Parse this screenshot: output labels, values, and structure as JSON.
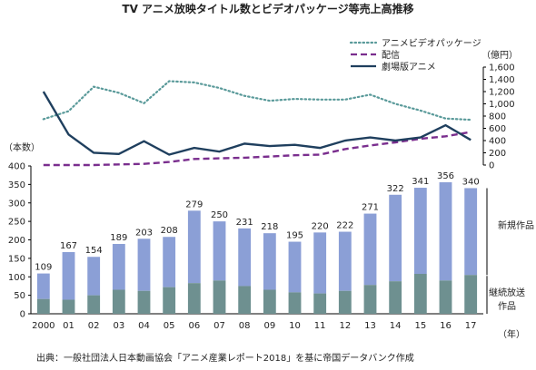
{
  "chart_data": {
    "type": "bar",
    "title": "TV アニメ放映タイトル数とビデオパッケージ等売上高推移",
    "categories": [
      "2000",
      "01",
      "02",
      "03",
      "04",
      "05",
      "06",
      "07",
      "08",
      "09",
      "10",
      "11",
      "12",
      "13",
      "14",
      "15",
      "16",
      "17"
    ],
    "x_unit": "（年）",
    "left_axis": {
      "unit_label": "（本数）",
      "ylim": [
        0,
        400
      ],
      "ticks": [
        0,
        50,
        100,
        150,
        200,
        250,
        300,
        350,
        400
      ]
    },
    "right_axis": {
      "unit_label": "（億円）",
      "ylim": [
        0,
        1600
      ],
      "ticks": [
        "0",
        "200",
        "400",
        "600",
        "800",
        "1,000",
        "1,200",
        "1,400",
        "1,600"
      ]
    },
    "bar_series": [
      {
        "name": "新規作品",
        "color": "#8b9fd6"
      },
      {
        "name": "継続放送作品",
        "color": "#6e9090"
      }
    ],
    "bar_totals": [
      109,
      167,
      154,
      189,
      203,
      208,
      279,
      250,
      231,
      218,
      195,
      220,
      222,
      271,
      322,
      341,
      356,
      340
    ],
    "bar_continuing": [
      40,
      38,
      50,
      65,
      62,
      72,
      83,
      90,
      75,
      65,
      58,
      55,
      62,
      78,
      88,
      108,
      90,
      105
    ],
    "line_series": [
      {
        "name": "アニメビデオパッケージ",
        "color": "#5a9a9a",
        "style": "dotted",
        "values": [
          750,
          880,
          1280,
          1180,
          1010,
          1370,
          1350,
          1260,
          1130,
          1050,
          1080,
          1070,
          1070,
          1150,
          1000,
          890,
          760,
          740
        ]
      },
      {
        "name": "配信",
        "color": "#7a2e8e",
        "style": "dashed",
        "values": [
          0,
          0,
          0,
          10,
          20,
          50,
          100,
          110,
          120,
          140,
          160,
          170,
          260,
          320,
          370,
          430,
          470,
          540
        ]
      },
      {
        "name": "劇場版アニメ",
        "color": "#1f3f5e",
        "style": "solid",
        "values": [
          1200,
          500,
          200,
          180,
          390,
          170,
          280,
          220,
          350,
          310,
          330,
          280,
          400,
          450,
          400,
          450,
          650,
          410
        ]
      }
    ],
    "source": "出典：一般社団法人日本動画協会「アニメ産業レポート2018」を基に帝国データバンク作成",
    "grid": false,
    "legend_position": "top-right"
  }
}
